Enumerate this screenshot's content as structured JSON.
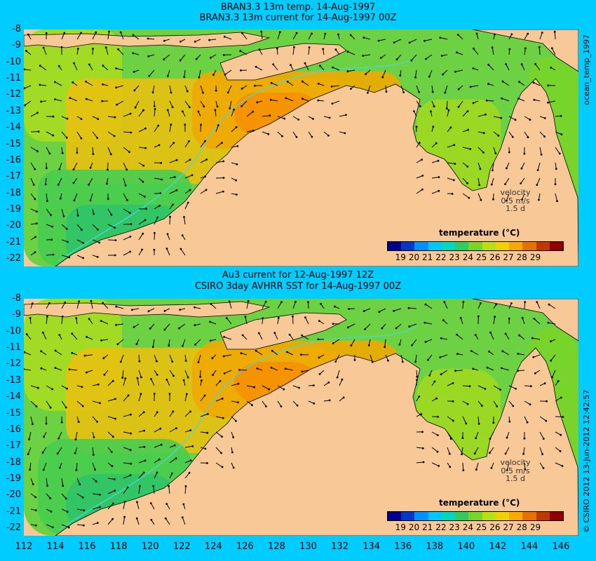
{
  "panels": [
    {
      "title_line1": "BRAN3.3 13m temp. 14-Aug-1997",
      "title_line2": "BRAN3.3 13m current for 14-Aug-1997 00Z",
      "side_label": "ocean_temp_1997",
      "velocity_label": "velocity",
      "velocity_value": "0.5 m/s",
      "velocity_time": "1.5 d",
      "legend_title": "temperature (°C)"
    },
    {
      "title_line1": "Au3 current for 12-Aug-1997 12Z",
      "title_line2": "CSIRO 3day AVHRR SST for 14-Aug-1997 00Z",
      "side_label": "© CSIRO 2012  13-Jun-2012 12:42:57",
      "velocity_label": "velocity",
      "velocity_value": "0.5 m/s",
      "velocity_time": "1.5 d",
      "legend_title": "temperature (°C)"
    }
  ],
  "lat_ticks": [
    "-8",
    "-9",
    "-10",
    "-11",
    "-12",
    "-13",
    "-14",
    "-15",
    "-16",
    "-17",
    "-18",
    "-19",
    "-20",
    "-21",
    "-22"
  ],
  "lon_ticks": [
    "112",
    "114",
    "116",
    "118",
    "120",
    "122",
    "124",
    "126",
    "128",
    "130",
    "132",
    "134",
    "136",
    "138",
    "140",
    "142",
    "144",
    "146"
  ],
  "colorbar_ticks": [
    "19",
    "20",
    "21",
    "22",
    "23",
    "24",
    "25",
    "26",
    "27",
    "28",
    "29"
  ],
  "colorbar_colors": [
    "#00008c",
    "#0038c8",
    "#0090ff",
    "#00c8ff",
    "#00d8c0",
    "#30cc60",
    "#78d428",
    "#b8e010",
    "#f0d000",
    "#f8a800",
    "#e87000",
    "#c03800",
    "#900000"
  ],
  "colors": {
    "background": "#00ccff",
    "land": "#f8c896",
    "coastline": "#000000",
    "isobath": "#4ad8e0",
    "arrow": "#000000"
  }
}
